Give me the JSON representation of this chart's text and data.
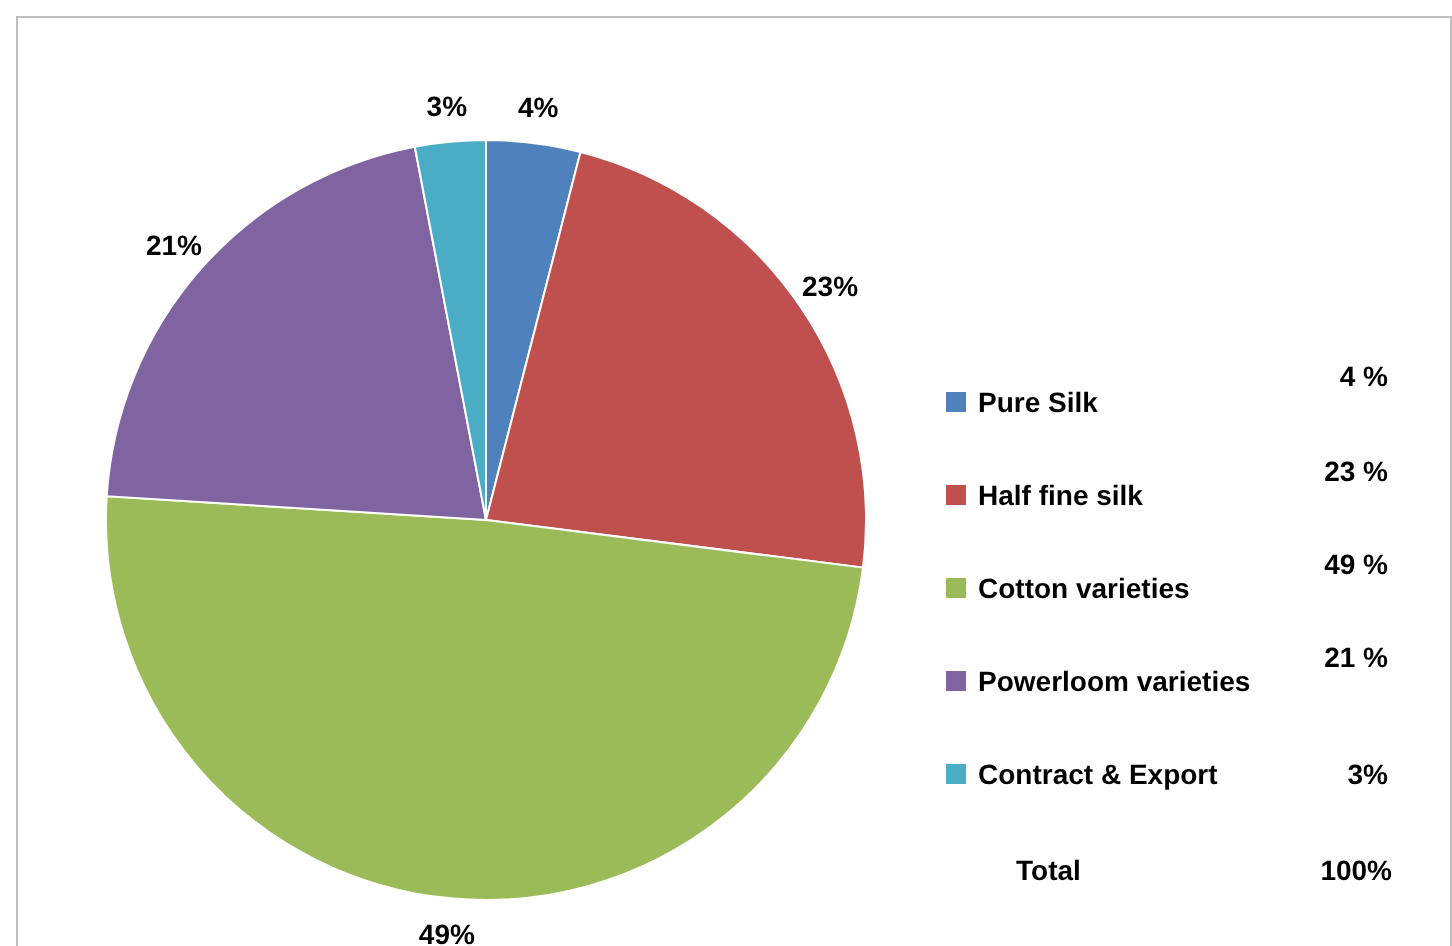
{
  "chart_data": {
    "type": "pie",
    "categories": [
      "Pure Silk",
      "Half fine silk",
      "Cotton varieties",
      "Powerloom varieties",
      "Contract & Export"
    ],
    "values": [
      4,
      23,
      49,
      21,
      3
    ],
    "colors": [
      "#4f81bd",
      "#c0504d",
      "#9bbb59",
      "#8064a2",
      "#4bacc6"
    ],
    "value_labels": [
      "4%",
      "23%",
      "49%",
      "21%",
      "3%"
    ],
    "legend": "right",
    "annotations": [
      "4 %",
      "23 %",
      "49 %",
      "21 %",
      "3%",
      "Total",
      "100%"
    ]
  }
}
